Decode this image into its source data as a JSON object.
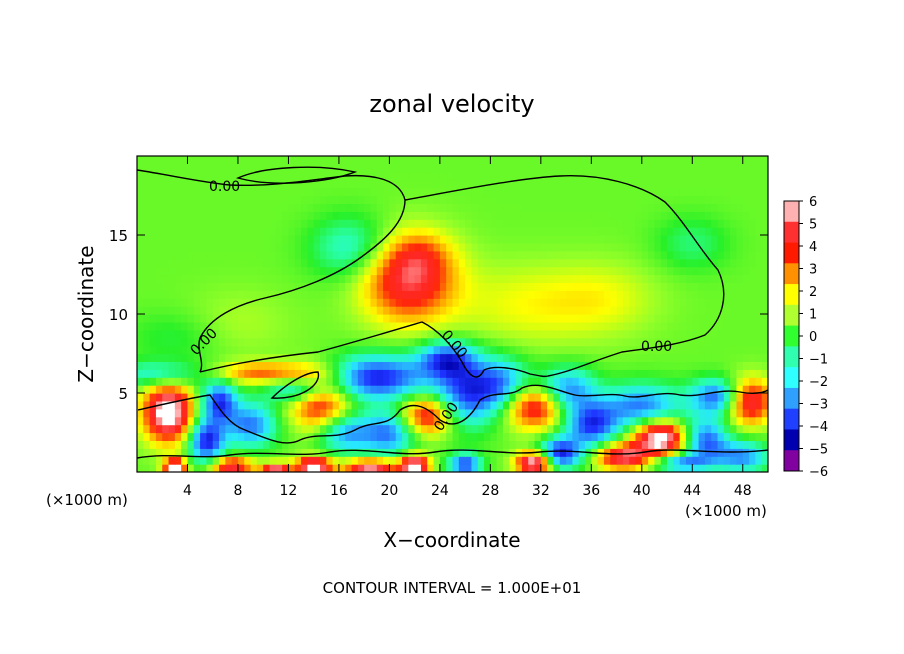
{
  "chart_data": {
    "type": "heatmap",
    "title": "zonal velocity",
    "xlabel": "X−coordinate",
    "ylabel": "Z−coordinate",
    "x_unit_left": "(×1000 m)",
    "x_unit_right": "(×1000 m)",
    "xlim": [
      0,
      50
    ],
    "ylim": [
      0,
      20
    ],
    "x_ticks": [
      4,
      8,
      12,
      16,
      20,
      24,
      28,
      32,
      36,
      40,
      44,
      48
    ],
    "y_ticks": [
      5,
      10,
      15
    ],
    "colorbar": {
      "ticks": [
        6,
        5,
        4,
        3,
        2,
        1,
        0,
        -1,
        -2,
        -3,
        -4,
        -5,
        -6
      ],
      "tick_labels": [
        "6",
        "5",
        "4",
        "3",
        "2",
        "1",
        "0",
        "−1",
        "−2",
        "−3",
        "−4",
        "−5",
        "−6"
      ],
      "colors": [
        "#ffb0b0",
        "#ff3030",
        "#ff1a00",
        "#ff9000",
        "#ffff00",
        "#b0ff30",
        "#30ff30",
        "#30ffb0",
        "#30ffff",
        "#30a0ff",
        "#2040ff",
        "#0000b0",
        "#8000a0"
      ]
    },
    "contour_labels": [
      "0.00",
      "0.00",
      "0.00",
      "0.00",
      "0.00"
    ],
    "footer": "CONTOUR INTERVAL = 1.000E+01",
    "background_value": 0.6,
    "features": [
      {
        "x": 21.5,
        "z": 12.2,
        "sx": 2.6,
        "sz": 1.9,
        "v": 4.6
      },
      {
        "x": 22.5,
        "z": 13.8,
        "sx": 1.6,
        "sz": 1.0,
        "v": 1.2
      },
      {
        "x": 31.0,
        "z": 10.6,
        "sx": 4.0,
        "sz": 1.8,
        "v": 1.3
      },
      {
        "x": 37.0,
        "z": 11.0,
        "sx": 3.0,
        "sz": 1.6,
        "v": 1.1
      },
      {
        "x": 17.0,
        "z": 14.2,
        "sx": 2.2,
        "sz": 1.4,
        "v": -2.2
      },
      {
        "x": 8.0,
        "z": 9.5,
        "sx": 3.0,
        "sz": 1.5,
        "v": 0.6
      },
      {
        "x": 3.0,
        "z": 8.5,
        "sx": 2.5,
        "sz": 1.2,
        "v": -0.8
      },
      {
        "x": 44.0,
        "z": 14.5,
        "sx": 2.0,
        "sz": 1.2,
        "v": -1.2
      },
      {
        "x": 10.0,
        "z": 6.3,
        "sx": 3.0,
        "sz": 0.5,
        "v": 3.0
      },
      {
        "x": 2.0,
        "z": 6.2,
        "sx": 2.5,
        "sz": 0.6,
        "v": -2.5
      },
      {
        "x": 13.0,
        "z": 5.2,
        "sx": 1.8,
        "sz": 0.6,
        "v": -3.5
      },
      {
        "x": 14.5,
        "z": 4.6,
        "sx": 1.7,
        "sz": 1.3,
        "v": 4.5
      },
      {
        "x": 19.0,
        "z": 6.0,
        "sx": 2.8,
        "sz": 1.0,
        "v": -5.0
      },
      {
        "x": 24.5,
        "z": 7.2,
        "sx": 1.6,
        "sz": 0.8,
        "v": -4.0
      },
      {
        "x": 23.0,
        "z": 3.6,
        "sx": 1.5,
        "sz": 0.9,
        "v": 4.5
      },
      {
        "x": 26.0,
        "z": 5.0,
        "sx": 1.8,
        "sz": 1.5,
        "v": -4.2
      },
      {
        "x": 31.5,
        "z": 4.2,
        "sx": 1.8,
        "sz": 1.0,
        "v": 4.8
      },
      {
        "x": 29.0,
        "z": 5.5,
        "sx": 1.6,
        "sz": 1.2,
        "v": -3.5
      },
      {
        "x": 34.0,
        "z": 5.2,
        "sx": 1.6,
        "sz": 1.0,
        "v": -4.0
      },
      {
        "x": 36.0,
        "z": 3.0,
        "sx": 1.5,
        "sz": 1.0,
        "v": -4.5
      },
      {
        "x": 40.0,
        "z": 4.2,
        "sx": 2.2,
        "sz": 1.0,
        "v": -3.8
      },
      {
        "x": 41.5,
        "z": 2.2,
        "sx": 1.5,
        "sz": 0.8,
        "v": 6.5
      },
      {
        "x": 46.0,
        "z": 4.8,
        "sx": 1.5,
        "sz": 0.8,
        "v": -4.2
      },
      {
        "x": 48.5,
        "z": 4.5,
        "sx": 1.3,
        "sz": 1.0,
        "v": 5.0
      },
      {
        "x": 2.5,
        "z": 3.8,
        "sx": 1.4,
        "sz": 1.3,
        "v": 6.5
      },
      {
        "x": 5.5,
        "z": 2.0,
        "sx": 1.0,
        "sz": 1.0,
        "v": -5.0
      },
      {
        "x": 6.5,
        "z": 4.5,
        "sx": 1.0,
        "sz": 0.9,
        "v": -4.5
      },
      {
        "x": 9.0,
        "z": 3.0,
        "sx": 1.5,
        "sz": 1.0,
        "v": -3.8
      },
      {
        "x": 16.5,
        "z": 2.5,
        "sx": 1.5,
        "sz": 0.9,
        "v": -3.5
      },
      {
        "x": 20.0,
        "z": 2.5,
        "sx": 1.5,
        "sz": 1.0,
        "v": -3.8
      },
      {
        "x": 33.5,
        "z": 1.2,
        "sx": 1.2,
        "sz": 0.7,
        "v": -5.0
      },
      {
        "x": 45.0,
        "z": 2.0,
        "sx": 1.3,
        "sz": 1.0,
        "v": -4.2
      },
      {
        "x": 38.5,
        "z": 1.0,
        "sx": 1.5,
        "sz": 0.6,
        "v": 5.0
      },
      {
        "x": 14.0,
        "z": 0.4,
        "sx": 1.0,
        "sz": 0.4,
        "v": 6.5
      },
      {
        "x": 18.5,
        "z": 0.3,
        "sx": 1.5,
        "sz": 0.4,
        "v": 5.5
      },
      {
        "x": 22.0,
        "z": 0.4,
        "sx": 0.8,
        "sz": 0.5,
        "v": 6.5
      },
      {
        "x": 31.5,
        "z": 0.6,
        "sx": 1.0,
        "sz": 0.5,
        "v": 6.5
      },
      {
        "x": 3.0,
        "z": 0.3,
        "sx": 0.6,
        "sz": 0.4,
        "v": 6.5
      },
      {
        "x": 7.5,
        "z": 0.4,
        "sx": 1.2,
        "sz": 0.4,
        "v": 5.0
      },
      {
        "x": 11.0,
        "z": 0.2,
        "sx": 0.8,
        "sz": 0.3,
        "v": 5.0
      },
      {
        "x": 26.0,
        "z": 0.5,
        "sx": 0.9,
        "sz": 0.5,
        "v": -4.5
      },
      {
        "x": 43.0,
        "z": 0.6,
        "sx": 1.5,
        "sz": 0.4,
        "v": -3.5
      },
      {
        "x": 48.0,
        "z": 1.0,
        "sx": 1.5,
        "sz": 0.7,
        "v": -3.5
      }
    ]
  }
}
